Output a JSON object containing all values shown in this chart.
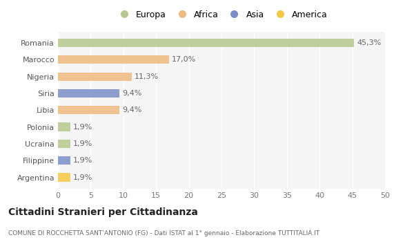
{
  "categories": [
    "Romania",
    "Marocco",
    "Nigeria",
    "Siria",
    "Libia",
    "Polonia",
    "Ucraina",
    "Filippine",
    "Argentina"
  ],
  "values": [
    45.3,
    17.0,
    11.3,
    9.4,
    9.4,
    1.9,
    1.9,
    1.9,
    1.9
  ],
  "labels": [
    "45,3%",
    "17,0%",
    "11,3%",
    "9,4%",
    "9,4%",
    "1,9%",
    "1,9%",
    "1,9%",
    "1,9%"
  ],
  "colors": [
    "#b5c98e",
    "#f0b97d",
    "#f0b97d",
    "#7b8ec8",
    "#f0b97d",
    "#b5c98e",
    "#b5c98e",
    "#7b8ec8",
    "#f5c842"
  ],
  "legend_labels": [
    "Europa",
    "Africa",
    "Asia",
    "America"
  ],
  "legend_colors": [
    "#b5c98e",
    "#f0b97d",
    "#7b8ec8",
    "#f5c842"
  ],
  "title": "Cittadini Stranieri per Cittadinanza",
  "subtitle": "COMUNE DI ROCCHETTA SANT’ANTONIO (FG) - Dati ISTAT al 1° gennaio - Elaborazione TUTTITALIA.IT",
  "xlim": [
    0,
    50
  ],
  "xticks": [
    0,
    5,
    10,
    15,
    20,
    25,
    30,
    35,
    40,
    45,
    50
  ],
  "background_color": "#ffffff",
  "plot_bg_color": "#f5f5f5",
  "grid_color": "#ffffff",
  "bar_height": 0.5,
  "label_fontsize": 8,
  "ytick_fontsize": 8,
  "xtick_fontsize": 8
}
